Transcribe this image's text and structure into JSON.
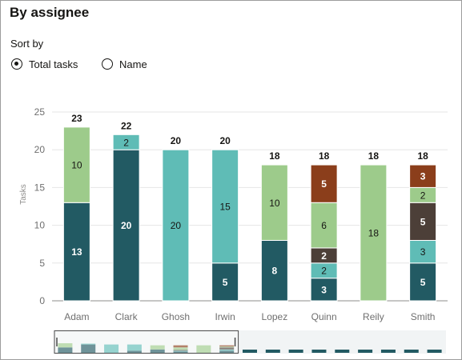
{
  "panel": {
    "title": "By assignee"
  },
  "sort": {
    "label": "Sort by",
    "options": [
      {
        "label": "Total tasks",
        "selected": true
      },
      {
        "label": "Name",
        "selected": false
      }
    ]
  },
  "colors": {
    "c1": "#225a63",
    "c2": "#5fbcb6",
    "c3": "#9dcb8b",
    "c4": "#4c3f38",
    "c5": "#8b3e1b",
    "axis": "#8e8d8b",
    "grid": "#e6e6e6"
  },
  "chart_data": {
    "type": "bar",
    "stacked": true,
    "ylabel": "Tasks",
    "ylim": [
      0,
      25
    ],
    "yticks": [
      0,
      5,
      10,
      15,
      20,
      25
    ],
    "grid": true,
    "categories": [
      "Adam",
      "Clark",
      "Ghosh",
      "Irwin",
      "Lopez",
      "Quinn",
      "Reily",
      "Smith"
    ],
    "totals": [
      23,
      22,
      20,
      20,
      18,
      18,
      18,
      18
    ],
    "series": [
      {
        "color": "#225a63",
        "values": [
          13,
          20,
          0,
          5,
          8,
          3,
          0,
          5
        ]
      },
      {
        "color": "#5fbcb6",
        "values": [
          0,
          2,
          20,
          15,
          0,
          2,
          0,
          3
        ]
      },
      {
        "color": "#4c3f38",
        "values": [
          0,
          0,
          0,
          0,
          0,
          2,
          0,
          5
        ]
      },
      {
        "color": "#9dcb8b",
        "values": [
          10,
          0,
          0,
          0,
          10,
          6,
          18,
          2
        ]
      },
      {
        "color": "#8b3e1b",
        "values": [
          0,
          0,
          0,
          0,
          0,
          5,
          0,
          3
        ]
      }
    ],
    "overview": {
      "totals": [
        23,
        22,
        20,
        20,
        18,
        18,
        18,
        18,
        17,
        17,
        16,
        16,
        16,
        16,
        16,
        16,
        16
      ]
    }
  }
}
